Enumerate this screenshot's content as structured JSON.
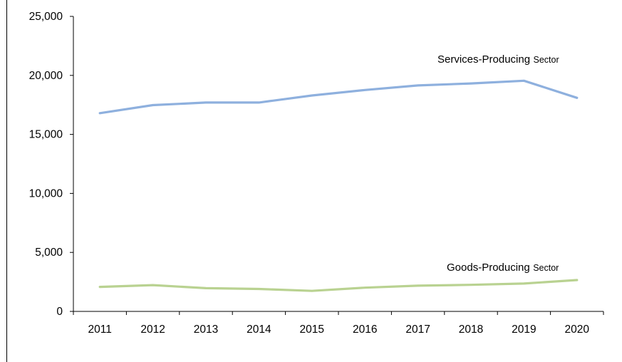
{
  "chart_data": {
    "type": "line",
    "categories": [
      "2011",
      "2012",
      "2013",
      "2014",
      "2015",
      "2016",
      "2017",
      "2018",
      "2019",
      "2020"
    ],
    "ylim": [
      0,
      25000
    ],
    "yticks": [
      0,
      5000,
      10000,
      15000,
      20000,
      25000
    ],
    "ytick_labels": [
      "0",
      "5,000",
      "10,000",
      "15,000",
      "20,000",
      "25,000"
    ],
    "grid": false,
    "series": [
      {
        "name_main": "Services-Producing",
        "name_suffix": "Sector",
        "color": "#8EB0DE",
        "values": [
          16800,
          17480,
          17700,
          17700,
          18300,
          18760,
          19150,
          19320,
          19550,
          18100
        ]
      },
      {
        "name_main": "Goods-Producing",
        "name_suffix": "Sector",
        "color": "#B9D291",
        "values": [
          2080,
          2230,
          1970,
          1900,
          1740,
          2010,
          2180,
          2250,
          2360,
          2660
        ]
      }
    ]
  }
}
